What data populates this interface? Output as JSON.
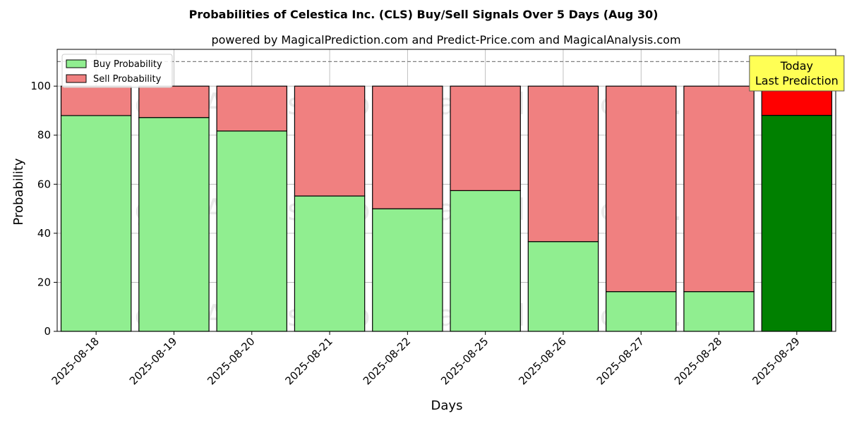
{
  "chart_data": {
    "type": "bar",
    "stacked": true,
    "title": "Probabilities of Celestica Inc. (CLS) Buy/Sell Signals Over 5 Days (Aug 30)",
    "subtitle": "powered by MagicalPrediction.com and Predict-Price.com and MagicalAnalysis.com",
    "xlabel": "Days",
    "ylabel": "Probability",
    "ylim": [
      0,
      115
    ],
    "yticks": [
      0,
      20,
      40,
      60,
      80,
      100
    ],
    "grid": true,
    "legend_position": "top-left",
    "categories": [
      "2025-08-18",
      "2025-08-19",
      "2025-08-20",
      "2025-08-21",
      "2025-08-22",
      "2025-08-25",
      "2025-08-26",
      "2025-08-27",
      "2025-08-28",
      "2025-08-29"
    ],
    "series": [
      {
        "name": "Buy Probability",
        "color": "#90ee90",
        "highlight_color": "#008000",
        "values": [
          88,
          87.2,
          81.7,
          55.2,
          50,
          57.4,
          36.6,
          16.2,
          16.2,
          88.1
        ]
      },
      {
        "name": "Sell Probability",
        "color": "#f08080",
        "highlight_color": "#ff0000",
        "values": [
          12,
          12.8,
          18.3,
          44.8,
          50,
          42.6,
          63.4,
          83.8,
          83.8,
          11.9
        ]
      }
    ],
    "highlight_index": 9,
    "reference_line": {
      "y": 110,
      "style": "dashed",
      "color": "#808080"
    },
    "annotation": {
      "lines": [
        "Today",
        "Last Prediction"
      ],
      "category_index": 9,
      "bg_color": "#ffff55"
    },
    "watermarks": [
      "MagicalAnalysis.com",
      "MagicalPrediction.com"
    ]
  }
}
